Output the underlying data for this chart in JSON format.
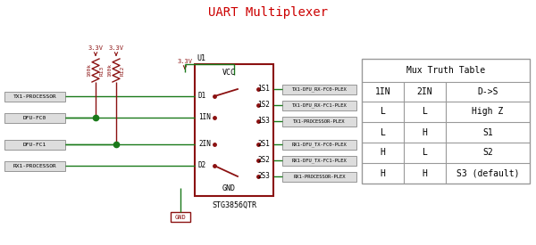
{
  "title": "UART Multiplexer",
  "title_color": "#cc0000",
  "dark_red": "#8b1111",
  "green": "#1a7a1a",
  "gray": "#888888",
  "chip_border": "#8b1111",
  "table_border": "#aaaaaa",
  "input_labels": [
    "TX1-PROCESSOR",
    "DFU-FC0",
    "DFU-FC1",
    "RX1-PROCESSOR"
  ],
  "output_labels": [
    "TX1-DFU_RX-FC0-PLEX",
    "TX1-DFU_RX-FC1-PLEX",
    "TX1-PROCESSOR-PLEX",
    "RX1-DFU_TX-FC0-PLEX",
    "RX1-DFU_TX-FC1-PLEX",
    "RX1-PROCESSOR-PLEX"
  ],
  "chip_name": "STG3856QTR",
  "chip_label": "U1",
  "truth_table_title": "Mux Truth Table",
  "truth_table_headers": [
    "1IN",
    "2IN",
    "D->S"
  ],
  "truth_table_rows": [
    [
      "L",
      "L",
      "High Z"
    ],
    [
      "L",
      "H",
      "S1"
    ],
    [
      "H",
      "L",
      "S2"
    ],
    [
      "H",
      "H",
      "S3 (default)"
    ]
  ]
}
